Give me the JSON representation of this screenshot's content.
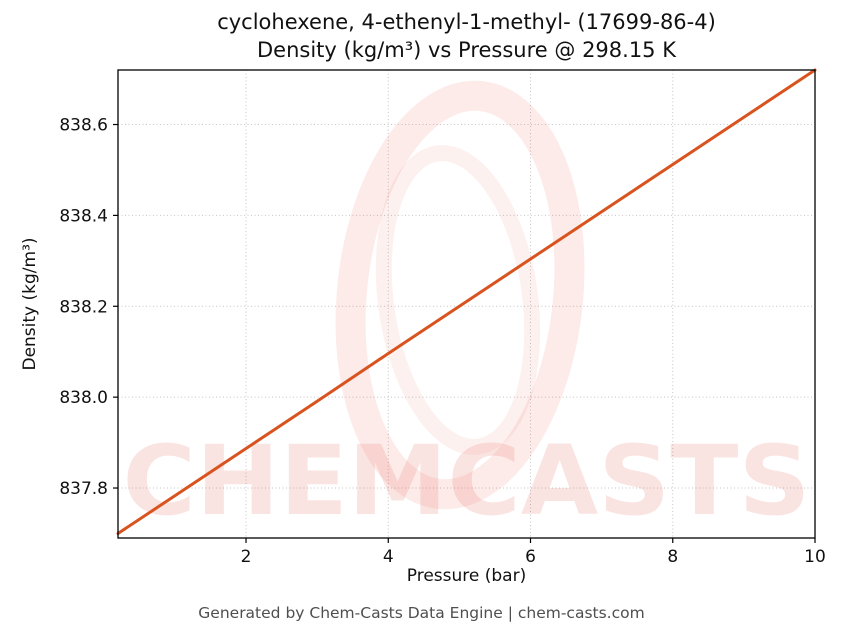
{
  "title": {
    "line1": "cyclohexene, 4-ethenyl-1-methyl- (17699-86-4)",
    "line2": "Density (kg/m³) vs Pressure @ 298.15 K"
  },
  "footer": "Generated by Chem-Casts Data Engine | chem-casts.com",
  "watermark": {
    "text": "CHEMCASTS",
    "logo": "chemcasts-swirl-logo",
    "color": "#e03a28"
  },
  "chart_data": {
    "type": "line",
    "title": "cyclohexene, 4-ethenyl-1-methyl- (17699-86-4) — Density (kg/m³) vs Pressure @ 298.15 K",
    "xlabel": "Pressure (bar)",
    "ylabel": "Density (kg/m³)",
    "xlim": [
      0.2,
      10
    ],
    "ylim": [
      837.69,
      838.72
    ],
    "xticks": [
      2,
      4,
      6,
      8,
      10
    ],
    "xtick_labels": [
      "2",
      "4",
      "6",
      "8",
      "10"
    ],
    "yticks": [
      837.8,
      838.0,
      838.2,
      838.4,
      838.6
    ],
    "ytick_labels": [
      "837.8",
      "838.0",
      "838.2",
      "838.4",
      "838.6"
    ],
    "grid": true,
    "legend": "none",
    "line_color": "#d9531e",
    "series": [
      {
        "name": "density",
        "x": [
          0.2,
          1,
          2,
          3,
          4,
          5,
          6,
          7,
          8,
          9,
          10
        ],
        "y": [
          837.7,
          837.783,
          837.887,
          837.991,
          838.096,
          838.2,
          838.304,
          838.408,
          838.512,
          838.616,
          838.72
        ]
      }
    ]
  }
}
